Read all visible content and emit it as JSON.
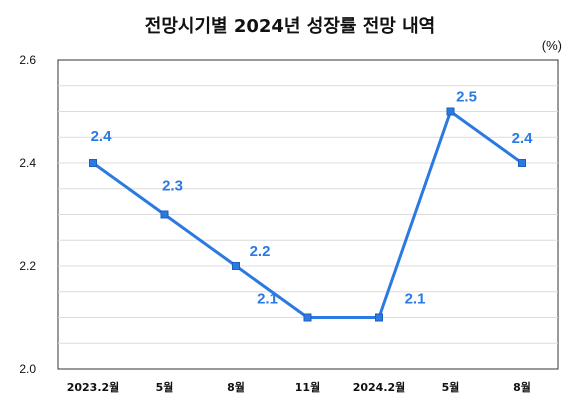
{
  "chart_data": {
    "type": "line",
    "title": "전망시기별 2024년 성장률 전망 내역",
    "unit": "(%)",
    "categories": [
      "2023.2월",
      "5월",
      "8월",
      "11월",
      "2024.2월",
      "5월",
      "8월"
    ],
    "series": [
      {
        "values": [
          2.4,
          2.3,
          2.2,
          2.1,
          2.1,
          2.5,
          2.4
        ]
      }
    ],
    "data_labels": [
      "2.4",
      "2.3",
      "2.2",
      "2.1",
      "2.1",
      "2.5",
      "2.4"
    ],
    "ylim": [
      2.0,
      2.6
    ],
    "yticks": [
      "2.0",
      "2.2",
      "2.4",
      "2.6"
    ],
    "grid": true,
    "line_color": "#2a7ae2"
  }
}
